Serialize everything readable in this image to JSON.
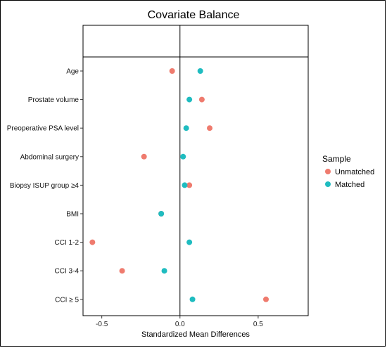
{
  "chart_data": {
    "type": "scatter",
    "title": "Covariate Balance",
    "xlabel": "Standardized Mean Differences",
    "xlim": [
      -0.62,
      0.82
    ],
    "x_ticks": [
      -0.5,
      0.0,
      0.5
    ],
    "x_tick_labels": [
      "-0.5",
      "0.0",
      "0.5"
    ],
    "categories": [
      "Age",
      "Prostate volume",
      "Preoperative PSA level",
      "Abdominal surgery",
      "Biopsy ISUP group ≥4",
      "BMI",
      "CCI 1-2",
      "CCI 3-4",
      "CCI ≥ 5"
    ],
    "series": [
      {
        "name": "Unmatched",
        "color": "#ef7b6e",
        "values": [
          -0.05,
          0.14,
          0.19,
          -0.23,
          0.06,
          -0.12,
          -0.56,
          -0.37,
          0.55
        ]
      },
      {
        "name": "Matched",
        "color": "#1fbcc0",
        "values": [
          0.13,
          0.06,
          0.04,
          0.02,
          0.03,
          -0.12,
          0.06,
          -0.1,
          0.08
        ]
      }
    ],
    "legend": {
      "title": "Sample",
      "position": "right"
    },
    "vline_at": 0
  }
}
